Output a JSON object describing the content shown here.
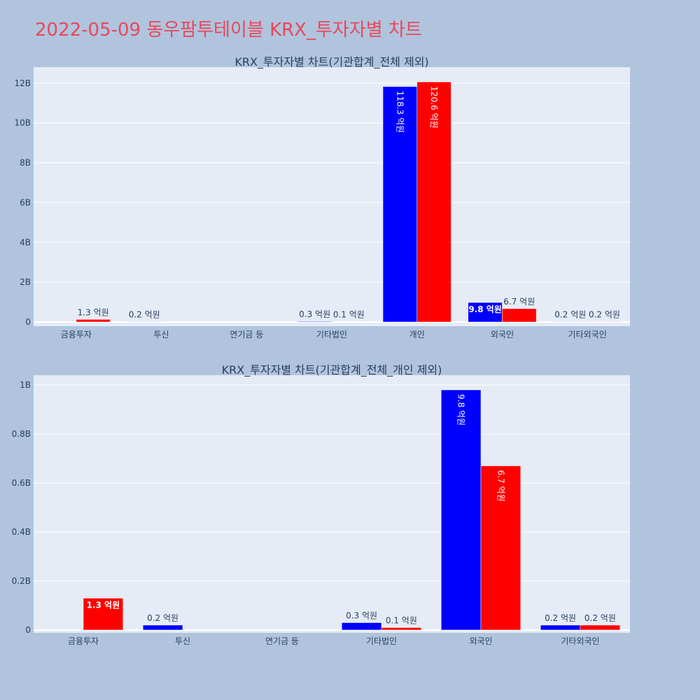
{
  "page_title": "2022-05-09 동우팜투테이블 KRX_투자자별 차트",
  "colors": {
    "series_a": "#0000ff",
    "series_b": "#ff0000",
    "plot_bg": "#e5ecf6",
    "page_bg": "#b0c4de",
    "title": "#e8485b"
  },
  "chart_data": [
    {
      "type": "bar",
      "title": "KRX_투자자별 차트(기관합계_전체 제외)",
      "categories": [
        "금융투자",
        "투신",
        "연기금 등",
        "기타법인",
        "개인",
        "외국인",
        "기타외국인"
      ],
      "ylim": [
        0,
        12800000000
      ],
      "yticks": [
        0,
        2000000000,
        4000000000,
        6000000000,
        8000000000,
        10000000000,
        12000000000
      ],
      "ytick_labels": [
        "0",
        "2B",
        "4B",
        "6B",
        "8B",
        "10B",
        "12B"
      ],
      "grid": true,
      "series": [
        {
          "color": "#0000ff",
          "values": [
            0,
            20000000,
            0,
            30000000,
            11830000000,
            980000000,
            20000000
          ],
          "labels": [
            "",
            "0.2 억원",
            "",
            "0.3 억원",
            "118.3 억원",
            "9.8 억원",
            "0.2 억원"
          ]
        },
        {
          "color": "#ff0000",
          "values": [
            130000000,
            0,
            0,
            10000000,
            12060000000,
            670000000,
            20000000
          ],
          "labels": [
            "1.3 억원",
            "",
            "",
            "0.1 억원",
            "120.6 억원",
            "6.7 억원",
            "0.2 억원"
          ]
        }
      ]
    },
    {
      "type": "bar",
      "title": "KRX_투자자별 차트(기관합계_전체_개인 제외)",
      "categories": [
        "금융투자",
        "투신",
        "연기금 등",
        "기타법인",
        "외국인",
        "기타외국인"
      ],
      "ylim": [
        0,
        1040000000
      ],
      "yticks": [
        0,
        200000000,
        400000000,
        600000000,
        800000000,
        1000000000
      ],
      "ytick_labels": [
        "0",
        "0.2B",
        "0.4B",
        "0.6B",
        "0.8B",
        "1B"
      ],
      "grid": true,
      "series": [
        {
          "color": "#0000ff",
          "values": [
            0,
            20000000,
            0,
            30000000,
            980000000,
            20000000
          ],
          "labels": [
            "",
            "0.2 억원",
            "",
            "0.3 억원",
            "9.8 억원",
            "0.2 억원"
          ]
        },
        {
          "color": "#ff0000",
          "values": [
            130000000,
            0,
            0,
            10000000,
            670000000,
            20000000
          ],
          "labels": [
            "1.3 억원",
            "",
            "",
            "0.1 억원",
            "6.7 억원",
            "0.2 억원"
          ]
        }
      ]
    }
  ]
}
